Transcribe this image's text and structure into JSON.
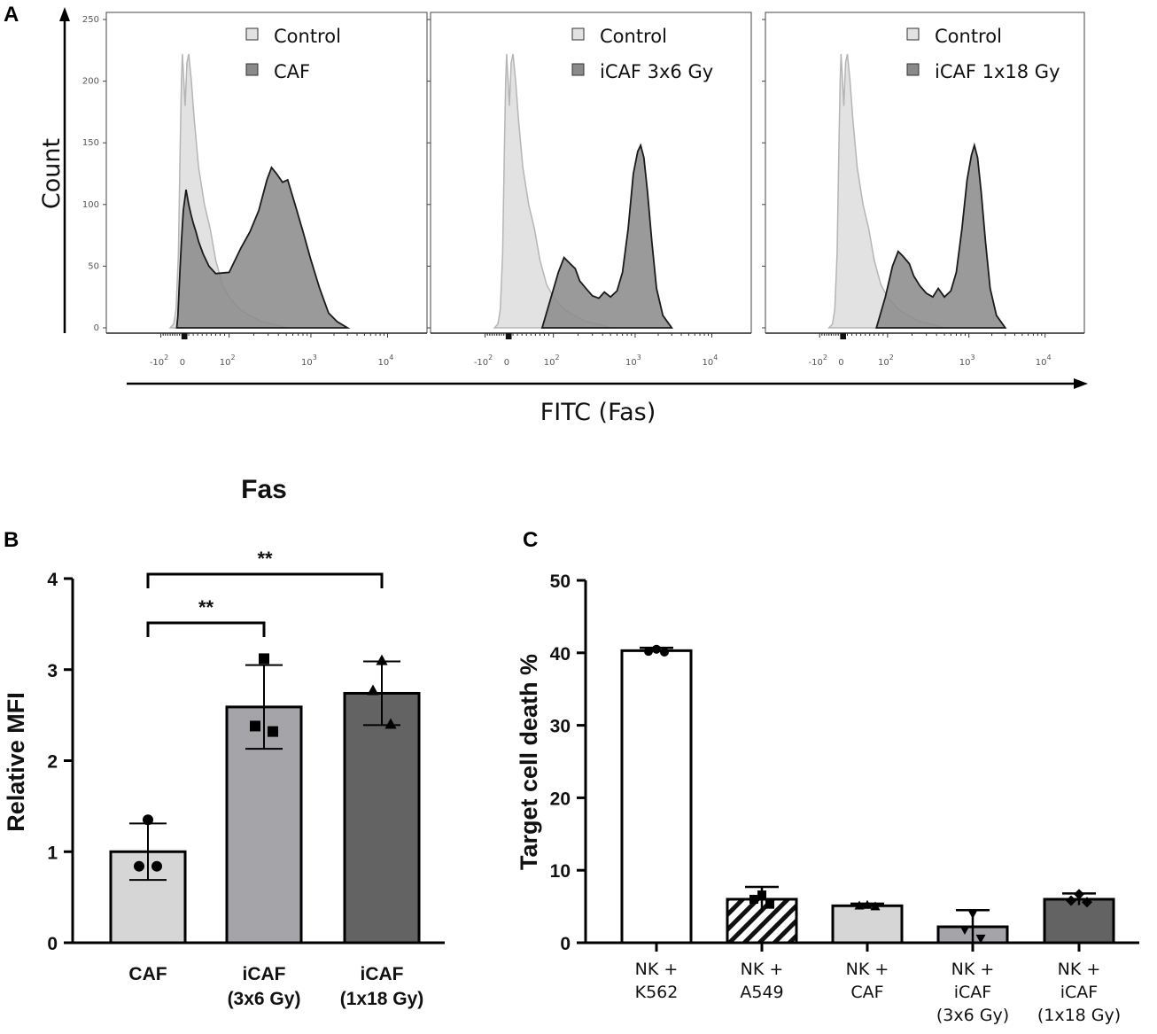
{
  "panels": {
    "a": "A",
    "b": "B",
    "c": "C"
  },
  "colors": {
    "control_fill": "#e2e2e2",
    "control_line": "#b5b5b5",
    "sample_fill": "#8c8c8c",
    "sample_line": "#1a1a1a",
    "bar_caf": "#d6d6d6",
    "bar_icaf_3x6": "#a4a4a9",
    "bar_icaf_1x18": "#636363"
  },
  "chart_data": [
    {
      "id": "A",
      "type": "area",
      "kind": "flow cytometry histograms",
      "ylabel": "Count",
      "xlabel": "FITC (Fas)",
      "y_ticks": [
        "0",
        "50",
        "100",
        "150",
        "200",
        "250"
      ],
      "ylim": [
        0,
        250
      ],
      "x_scale": "biexponential",
      "x_ticks": [
        {
          "base": "-10",
          "exp": "2",
          "value": -100
        },
        {
          "base": "0",
          "exp": "",
          "value": 0
        },
        {
          "base": "10",
          "exp": "2",
          "value": 100
        },
        {
          "base": "10",
          "exp": "3",
          "value": 1000
        },
        {
          "base": "10",
          "exp": "4",
          "value": 10000
        }
      ],
      "subplots": [
        {
          "legend": [
            "Control",
            "CAF"
          ],
          "control": [
            [
              -60,
              0
            ],
            [
              -45,
              3
            ],
            [
              -35,
              15
            ],
            [
              -25,
              60
            ],
            [
              -17,
              150
            ],
            [
              -12,
              200
            ],
            [
              -8,
              222
            ],
            [
              -3,
              205
            ],
            [
              2,
              180
            ],
            [
              6,
              215
            ],
            [
              10,
              222
            ],
            [
              16,
              200
            ],
            [
              22,
              170
            ],
            [
              32,
              130
            ],
            [
              45,
              100
            ],
            [
              58,
              80
            ],
            [
              70,
              55
            ],
            [
              85,
              35
            ],
            [
              100,
              25
            ],
            [
              135,
              15
            ],
            [
              180,
              10
            ],
            [
              250,
              5
            ],
            [
              350,
              3
            ],
            [
              500,
              0
            ]
          ],
          "sample": [
            [
              -32,
              0
            ],
            [
              -27,
              10
            ],
            [
              -20,
              40
            ],
            [
              -12,
              70
            ],
            [
              -4,
              95
            ],
            [
              4,
              112
            ],
            [
              10,
              100
            ],
            [
              15,
              92
            ],
            [
              20,
              85
            ],
            [
              26,
              78
            ],
            [
              32,
              70
            ],
            [
              42,
              60
            ],
            [
              55,
              50
            ],
            [
              70,
              44
            ],
            [
              100,
              45
            ],
            [
              140,
              65
            ],
            [
              180,
              78
            ],
            [
              230,
              95
            ],
            [
              290,
              120
            ],
            [
              330,
              130
            ],
            [
              380,
              125
            ],
            [
              450,
              118
            ],
            [
              520,
              120
            ],
            [
              640,
              100
            ],
            [
              800,
              78
            ],
            [
              1000,
              55
            ],
            [
              1300,
              32
            ],
            [
              1700,
              12
            ],
            [
              2200,
              5
            ],
            [
              3000,
              0
            ]
          ]
        },
        {
          "legend": [
            "Control",
            "iCAF 3x6 Gy"
          ],
          "control": [
            [
              -60,
              0
            ],
            [
              -45,
              3
            ],
            [
              -35,
              15
            ],
            [
              -25,
              60
            ],
            [
              -17,
              150
            ],
            [
              -12,
              200
            ],
            [
              -8,
              222
            ],
            [
              -3,
              205
            ],
            [
              2,
              180
            ],
            [
              6,
              215
            ],
            [
              10,
              222
            ],
            [
              16,
              200
            ],
            [
              22,
              170
            ],
            [
              32,
              130
            ],
            [
              45,
              100
            ],
            [
              58,
              80
            ],
            [
              70,
              55
            ],
            [
              85,
              35
            ],
            [
              100,
              25
            ],
            [
              135,
              15
            ],
            [
              180,
              10
            ],
            [
              250,
              5
            ],
            [
              350,
              3
            ],
            [
              500,
              0
            ]
          ],
          "sample": [
            [
              75,
              0
            ],
            [
              95,
              25
            ],
            [
              115,
              45
            ],
            [
              135,
              57
            ],
            [
              155,
              53
            ],
            [
              185,
              48
            ],
            [
              210,
              38
            ],
            [
              250,
              32
            ],
            [
              300,
              26
            ],
            [
              360,
              24
            ],
            [
              420,
              29
            ],
            [
              500,
              25
            ],
            [
              600,
              30
            ],
            [
              700,
              45
            ],
            [
              820,
              80
            ],
            [
              950,
              125
            ],
            [
              1080,
              143
            ],
            [
              1180,
              148
            ],
            [
              1300,
              138
            ],
            [
              1450,
              110
            ],
            [
              1650,
              70
            ],
            [
              1900,
              32
            ],
            [
              2300,
              10
            ],
            [
              3000,
              0
            ]
          ]
        },
        {
          "legend": [
            "Control",
            "iCAF 1x18 Gy"
          ],
          "control": [
            [
              -60,
              0
            ],
            [
              -45,
              3
            ],
            [
              -35,
              15
            ],
            [
              -25,
              60
            ],
            [
              -17,
              150
            ],
            [
              -12,
              200
            ],
            [
              -8,
              222
            ],
            [
              -3,
              205
            ],
            [
              2,
              180
            ],
            [
              6,
              215
            ],
            [
              10,
              222
            ],
            [
              16,
              200
            ],
            [
              22,
              170
            ],
            [
              32,
              130
            ],
            [
              45,
              100
            ],
            [
              58,
              80
            ],
            [
              70,
              55
            ],
            [
              85,
              35
            ],
            [
              100,
              25
            ],
            [
              135,
              15
            ],
            [
              180,
              10
            ],
            [
              250,
              5
            ],
            [
              350,
              3
            ],
            [
              500,
              0
            ]
          ],
          "sample": [
            [
              75,
              0
            ],
            [
              95,
              25
            ],
            [
              115,
              50
            ],
            [
              135,
              62
            ],
            [
              155,
              58
            ],
            [
              185,
              52
            ],
            [
              210,
              42
            ],
            [
              250,
              34
            ],
            [
              300,
              28
            ],
            [
              360,
              25
            ],
            [
              420,
              32
            ],
            [
              500,
              25
            ],
            [
              600,
              30
            ],
            [
              700,
              45
            ],
            [
              820,
              80
            ],
            [
              950,
              120
            ],
            [
              1080,
              140
            ],
            [
              1180,
              148
            ],
            [
              1300,
              138
            ],
            [
              1450,
              110
            ],
            [
              1650,
              70
            ],
            [
              1900,
              32
            ],
            [
              2300,
              10
            ],
            [
              3000,
              0
            ]
          ]
        }
      ]
    },
    {
      "id": "B",
      "type": "bar",
      "title": "Fas",
      "ylabel": "Relative MFI",
      "categories": [
        "CAF",
        "iCAF\n(3x6 Gy)",
        "iCAF\n(1x18 Gy)"
      ],
      "category_lines": [
        [
          "CAF"
        ],
        [
          "iCAF",
          "(3x6 Gy)"
        ],
        [
          "iCAF",
          "(1x18 Gy)"
        ]
      ],
      "values": [
        1.0,
        2.59,
        2.74
      ],
      "error": [
        0.31,
        0.46,
        0.35
      ],
      "points": [
        [
          1.35,
          0.84,
          0.84
        ],
        [
          3.12,
          2.38,
          2.32
        ],
        [
          3.1,
          2.77,
          2.4
        ]
      ],
      "markers": [
        "circle",
        "square",
        "triangle"
      ],
      "ylim": [
        0,
        4
      ],
      "y_ticks": [
        0,
        1,
        2,
        3,
        4
      ],
      "significance": [
        {
          "from": 0,
          "to": 1,
          "label": "**"
        },
        {
          "from": 0,
          "to": 2,
          "label": "**"
        }
      ]
    },
    {
      "id": "C",
      "type": "bar",
      "ylabel": "Target cell death %",
      "categories": [
        "NK +\nK562",
        "NK +\nA549",
        "NK +\nCAF",
        "NK +\niCAF\n(3x6 Gy)",
        "NK +\niCAF\n(1x18 Gy)"
      ],
      "category_lines": [
        [
          "NK +",
          "K562"
        ],
        [
          "NK +",
          "A549"
        ],
        [
          "NK +",
          "CAF"
        ],
        [
          "NK +",
          "iCAF",
          "(3x6 Gy)"
        ],
        [
          "NK +",
          "iCAF",
          "(1x18 Gy)"
        ]
      ],
      "values": [
        40.3,
        6.0,
        5.1,
        2.2,
        6.0
      ],
      "error": [
        0.4,
        1.7,
        0.3,
        2.3,
        0.8
      ],
      "points": [
        [
          40.5,
          40.2,
          40.1
        ],
        [
          6.6,
          6.0,
          5.3
        ],
        [
          5.2,
          5.1,
          5.0
        ],
        [
          4.0,
          1.8,
          0.6
        ],
        [
          6.7,
          5.8,
          5.6
        ]
      ],
      "markers": [
        "circle",
        "square",
        "triangle-up",
        "triangle-down",
        "diamond"
      ],
      "fills": [
        "white",
        "hatched",
        "light",
        "medium",
        "dark"
      ],
      "ylim": [
        0,
        50
      ],
      "y_ticks": [
        0,
        10,
        20,
        30,
        40,
        50
      ]
    }
  ]
}
